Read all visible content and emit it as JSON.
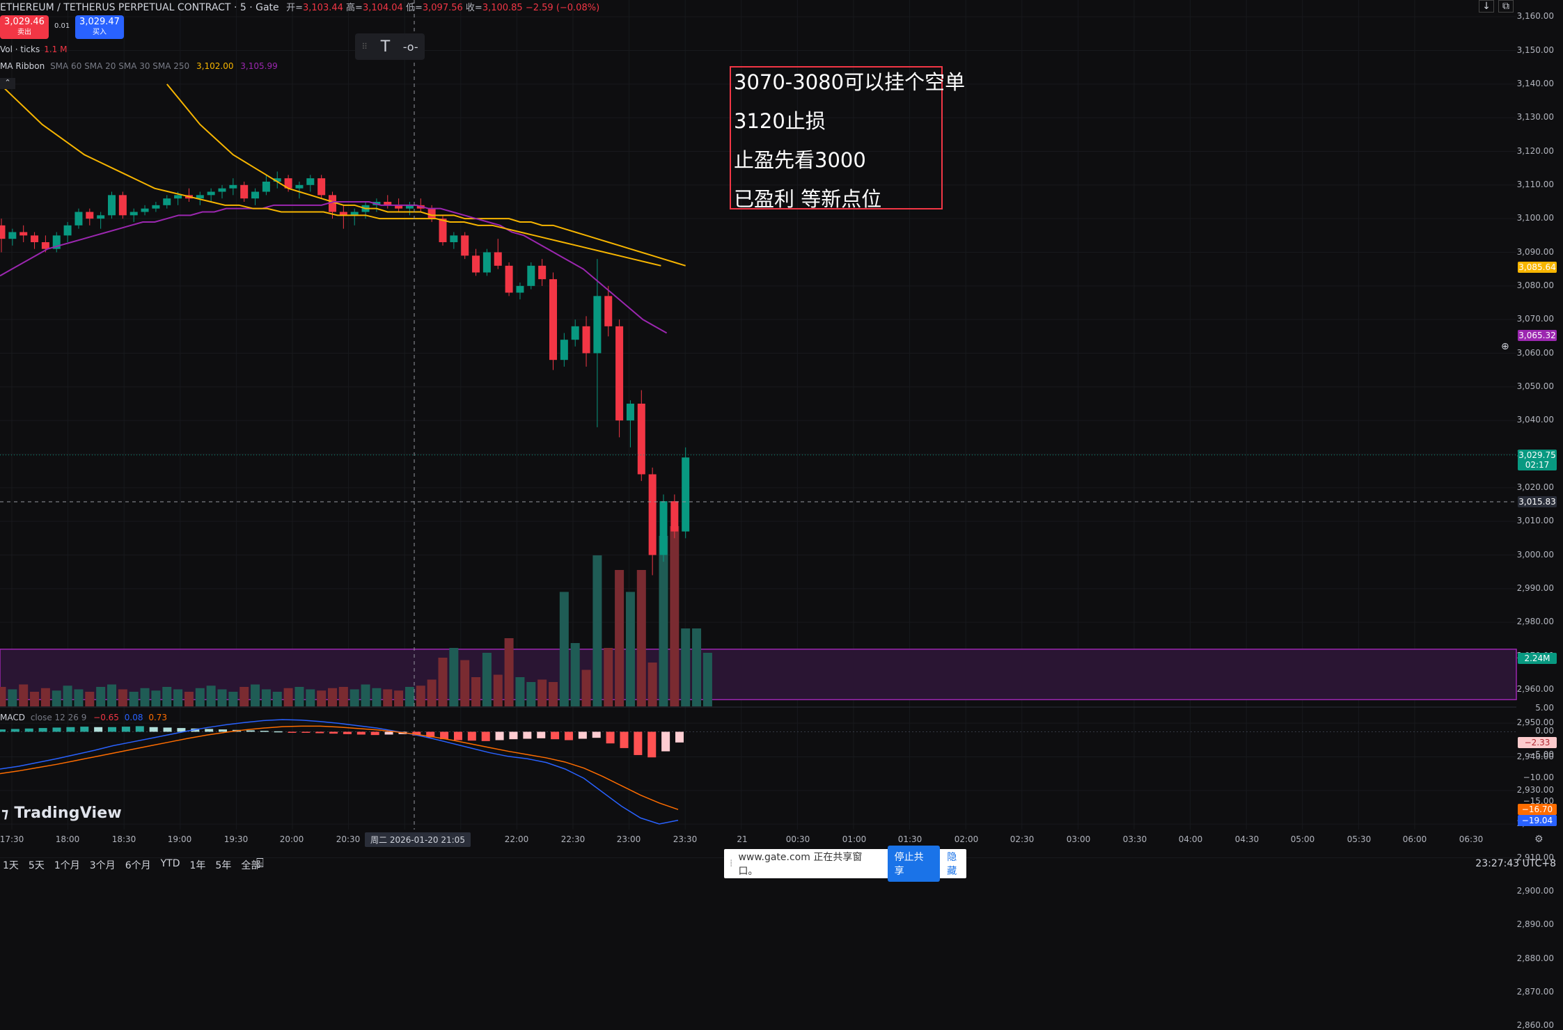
{
  "header": {
    "symbol": "ETHEREUM / TETHERUS PERPETUAL CONTRACT · 5 · Gate",
    "ohlc": [
      {
        "label": "开=",
        "value": "3,103.44"
      },
      {
        "label": "高=",
        "value": "3,104.04"
      },
      {
        "label": "低=",
        "value": "3,097.56"
      },
      {
        "label": "收=",
        "value": "3,100.85"
      }
    ],
    "change": "−2.59 (−0.08%)"
  },
  "trade": {
    "sell_price": "3,029.46",
    "sell_label": "卖出",
    "quantity": "0.01",
    "buy_price": "3,029.47",
    "buy_label": "买入"
  },
  "indicators": {
    "vol_label": "Vol · ticks",
    "vol_value": "1.1 M",
    "ma_label": "MA Ribbon",
    "ma_params": "SMA 60 SMA 20 SMA 30 SMA 250",
    "ma_value1": "3,102.00",
    "ma_value2": "3,105.99",
    "macd_label": "MACD",
    "macd_params": "close 12 26 9",
    "macd_values": [
      "−0.65",
      "0.08",
      "0.73"
    ]
  },
  "annotation": {
    "lines": [
      "3070-3080可以挂个空单",
      "3120止损",
      "止盈先看3000",
      "已盈利  等新点位"
    ]
  },
  "price_axis": {
    "ticks": [
      "3,160.00",
      "3,150.00",
      "3,140.00",
      "3,130.00",
      "3,120.00",
      "3,110.00",
      "3,100.00",
      "3,090.00",
      "3,080.00",
      "3,070.00",
      "3,060.00",
      "3,050.00",
      "3,040.00",
      "3,030.00",
      "3,020.00",
      "3,010.00",
      "3,000.00",
      "2,990.00",
      "2,980.00",
      "2,970.00",
      "2,960.00",
      "2,950.00",
      "2,940.00",
      "2,930.00",
      "2,920.00",
      "2,910.00",
      "2,900.00",
      "2,890.00",
      "2,880.00",
      "2,870.00",
      "2,860.00"
    ],
    "macd_ticks": [
      "5.00",
      "0.00",
      "−5.00",
      "−10.00",
      "−15.00"
    ],
    "tags": [
      {
        "text": "3,085.64",
        "color": "#f7b500",
        "value": 3085.64
      },
      {
        "text": "3,065.32",
        "color": "#9c27b0",
        "value": 3065.32
      },
      {
        "text": "3,029.75",
        "color": "#089981",
        "value": 3029.75
      },
      {
        "text": "02:17",
        "color": "#089981",
        "value": 3026.8
      },
      {
        "text": "3,015.83",
        "color": "#2a2e39",
        "value": 3015.83
      },
      {
        "text": "2.24M",
        "color": "#089981",
        "value": 2875.5
      }
    ],
    "macd_tags": [
      {
        "text": "−2.33",
        "color": "#fccbcd",
        "value": -2.33
      },
      {
        "text": "−16.70",
        "color": "#ff6d00",
        "value": -16.7
      },
      {
        "text": "−19.04",
        "color": "#2962ff",
        "value": -19.04
      }
    ]
  },
  "time_axis": {
    "labels": [
      "17:30",
      "18:00",
      "18:30",
      "19:00",
      "19:30",
      "20:00",
      "20:30",
      "22:00",
      "22:30",
      "23:00",
      "23:30",
      "21",
      "00:30",
      "01:00",
      "01:30",
      "02:00",
      "02:30",
      "03:00",
      "03:30",
      "04:00",
      "04:30",
      "05:00",
      "05:30",
      "06:00",
      "06:30"
    ],
    "crosshair": "周二 2026-01-20   21:05"
  },
  "bottom_bar": {
    "ranges": [
      "1天",
      "5天",
      "1个月",
      "3个月",
      "6个月",
      "YTD",
      "1年",
      "5年",
      "全部"
    ],
    "clock": "23:27:43 UTC+8"
  },
  "share_bar": {
    "text": "www.gate.com 正在共享窗口。",
    "stop": "停止共享",
    "hide": "隐藏"
  },
  "logo": "TradingView",
  "chart_data": {
    "type": "candlestick",
    "price_ylim": [
      2955,
      3165
    ],
    "zone": [
      2957,
      2972
    ],
    "candles": [
      [
        3098,
        3100,
        3090,
        3094
      ],
      [
        3094,
        3097,
        3092,
        3096
      ],
      [
        3096,
        3098,
        3093,
        3095
      ],
      [
        3095,
        3096,
        3091,
        3093
      ],
      [
        3093,
        3095,
        3090,
        3091
      ],
      [
        3091,
        3096,
        3090,
        3095
      ],
      [
        3095,
        3099,
        3093,
        3098
      ],
      [
        3098,
        3103,
        3097,
        3102
      ],
      [
        3102,
        3103,
        3098,
        3100
      ],
      [
        3100,
        3102,
        3097,
        3101
      ],
      [
        3101,
        3108,
        3100,
        3107
      ],
      [
        3107,
        3108,
        3100,
        3101
      ],
      [
        3101,
        3103,
        3099,
        3102
      ],
      [
        3102,
        3104,
        3101,
        3103
      ],
      [
        3103,
        3105,
        3102,
        3104
      ],
      [
        3104,
        3107,
        3103,
        3106
      ],
      [
        3106,
        3108,
        3104,
        3107
      ],
      [
        3107,
        3109,
        3105,
        3106
      ],
      [
        3106,
        3108,
        3104,
        3107
      ],
      [
        3107,
        3109,
        3105,
        3108
      ],
      [
        3108,
        3110,
        3106,
        3109
      ],
      [
        3109,
        3112,
        3107,
        3110
      ],
      [
        3110,
        3111,
        3105,
        3106
      ],
      [
        3106,
        3109,
        3104,
        3108
      ],
      [
        3108,
        3113,
        3107,
        3111
      ],
      [
        3111,
        3114,
        3109,
        3112
      ],
      [
        3112,
        3113,
        3108,
        3109
      ],
      [
        3109,
        3111,
        3106,
        3110
      ],
      [
        3110,
        3113,
        3108,
        3112
      ],
      [
        3112,
        3113,
        3106,
        3107
      ],
      [
        3107,
        3108,
        3100,
        3102
      ],
      [
        3102,
        3104,
        3097,
        3101
      ],
      [
        3101,
        3103,
        3098,
        3102
      ],
      [
        3102,
        3105,
        3100,
        3104
      ],
      [
        3104,
        3106,
        3102,
        3105
      ],
      [
        3105,
        3107,
        3103,
        3104
      ],
      [
        3104,
        3106,
        3102,
        3103
      ],
      [
        3103,
        3105,
        3101,
        3104
      ],
      [
        3104,
        3106,
        3102,
        3103
      ],
      [
        3103,
        3104,
        3099,
        3100
      ],
      [
        3100,
        3101,
        3092,
        3093
      ],
      [
        3093,
        3096,
        3091,
        3095
      ],
      [
        3095,
        3096,
        3088,
        3089
      ],
      [
        3089,
        3091,
        3083,
        3084
      ],
      [
        3084,
        3091,
        3083,
        3090
      ],
      [
        3090,
        3094,
        3085,
        3086
      ],
      [
        3086,
        3087,
        3077,
        3078
      ],
      [
        3078,
        3081,
        3076,
        3080
      ],
      [
        3080,
        3087,
        3079,
        3086
      ],
      [
        3086,
        3088,
        3080,
        3082
      ],
      [
        3082,
        3084,
        3055,
        3058
      ],
      [
        3058,
        3066,
        3056,
        3064
      ],
      [
        3064,
        3070,
        3062,
        3068
      ],
      [
        3068,
        3071,
        3056,
        3060
      ],
      [
        3060,
        3088,
        3038,
        3077
      ],
      [
        3077,
        3080,
        3065,
        3068
      ],
      [
        3068,
        3070,
        3035,
        3040
      ],
      [
        3040,
        3046,
        3032,
        3045
      ],
      [
        3045,
        3049,
        3022,
        3024
      ],
      [
        3024,
        3026,
        2994,
        3000
      ],
      [
        3000,
        3018,
        2998,
        3016
      ],
      [
        3016,
        3018,
        3005,
        3007
      ],
      [
        3007,
        3032,
        3005,
        3029
      ]
    ],
    "volume_ylim": [
      0,
      800000
    ],
    "volumes": [
      80,
      70,
      90,
      60,
      75,
      65,
      85,
      70,
      60,
      80,
      90,
      70,
      60,
      75,
      65,
      80,
      70,
      60,
      75,
      85,
      70,
      60,
      80,
      90,
      70,
      60,
      75,
      80,
      70,
      65,
      75,
      80,
      70,
      90,
      75,
      70,
      65,
      80,
      85,
      110,
      200,
      240,
      190,
      120,
      220,
      130,
      280,
      120,
      100,
      110,
      100,
      470,
      260,
      150,
      620,
      240,
      560,
      470,
      560,
      180,
      700,
      740,
      320,
      320,
      220
    ],
    "ma_fast": [
      3083,
      3085,
      3087,
      3089,
      3091,
      3092,
      3093,
      3094,
      3095,
      3096,
      3097,
      3098,
      3099,
      3099,
      3100,
      3101,
      3101,
      3102,
      3102,
      3103,
      3103,
      3103,
      3103,
      3104,
      3104,
      3104,
      3104,
      3104,
      3105,
      3105,
      3105,
      3105,
      3104,
      3104,
      3104,
      3104,
      3103,
      3103,
      3102,
      3101,
      3100,
      3099,
      3098,
      3096,
      3095,
      3093,
      3091,
      3089,
      3087,
      3085,
      3082,
      3079,
      3076,
      3073,
      3070,
      3068,
      3066
    ],
    "ma_slow": [
      3140,
      3136,
      3132,
      3128,
      3125,
      3122,
      3119,
      3117,
      3115,
      3113,
      3111,
      3109,
      3108,
      3107,
      3106,
      3105,
      3104,
      3104,
      3103,
      3103,
      3102,
      3102,
      3102,
      3102,
      3101,
      3101,
      3101,
      3100,
      3100,
      3100,
      3100,
      3100,
      3099,
      3099,
      3098,
      3098,
      3097,
      3096,
      3095,
      3094,
      3093,
      3092,
      3091,
      3090,
      3089,
      3088,
      3087,
      3086
    ],
    "macd_ylim": [
      -21,
      5
    ],
    "macd_hist": [
      0.5,
      0.6,
      0.7,
      0.8,
      0.9,
      1.0,
      1.1,
      1.0,
      1.0,
      1.1,
      1.2,
      1.0,
      0.9,
      0.8,
      0.7,
      0.6,
      0.5,
      0.4,
      0.3,
      0.2,
      0.1,
      -0.1,
      -0.2,
      -0.3,
      -0.4,
      -0.5,
      -0.6,
      -0.7,
      -0.6,
      -0.5,
      -0.8,
      -1.2,
      -1.6,
      -1.8,
      -1.9,
      -2.0,
      -1.8,
      -1.6,
      -1.5,
      -1.4,
      -1.6,
      -1.8,
      -1.5,
      -1.3,
      -2.5,
      -3.5,
      -5.0,
      -5.5,
      -4.2,
      -2.3
    ],
    "macd_line": [
      -8,
      -7.4,
      -6.6,
      -5.8,
      -4.9,
      -4.0,
      -3.0,
      -2.2,
      -1.4,
      -0.6,
      0.2,
      0.9,
      1.5,
      2.0,
      2.4,
      2.6,
      2.5,
      2.2,
      1.8,
      1.3,
      0.8,
      0.1,
      -0.6,
      -1.5,
      -2.5,
      -3.5,
      -4.5,
      -5.3,
      -5.8,
      -6.6,
      -8.0,
      -10.0,
      -13.0,
      -16.0,
      -18.5,
      -19.8,
      -19.0
    ],
    "signal_line": [
      -9,
      -8.4,
      -7.7,
      -7.0,
      -6.2,
      -5.4,
      -4.6,
      -3.8,
      -3.0,
      -2.2,
      -1.4,
      -0.7,
      -0.1,
      0.4,
      0.8,
      1.1,
      1.2,
      1.2,
      1.0,
      0.7,
      0.4,
      0.0,
      -0.5,
      -1.1,
      -1.8,
      -2.6,
      -3.4,
      -4.2,
      -4.9,
      -5.6,
      -6.5,
      -7.8,
      -9.6,
      -11.6,
      -13.6,
      -15.3,
      -16.7
    ]
  }
}
